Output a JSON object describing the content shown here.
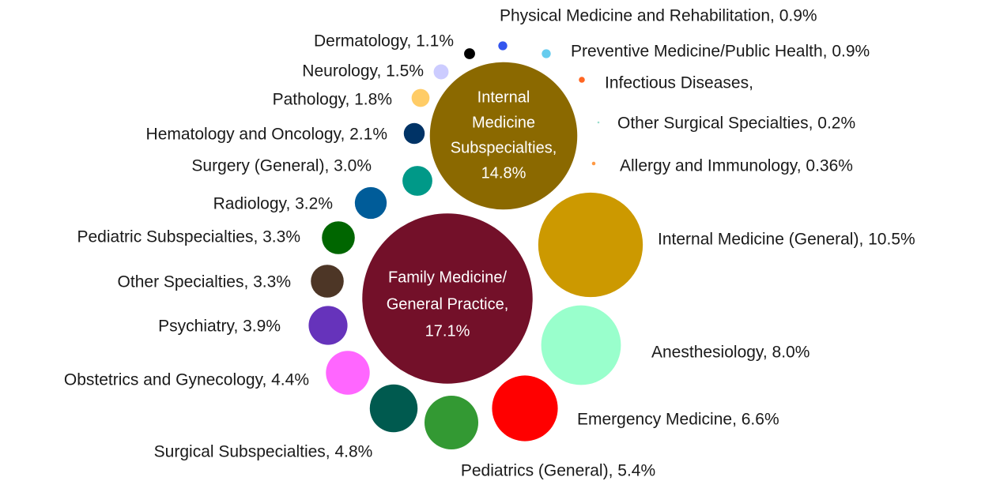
{
  "chart_data": {
    "type": "bubble",
    "labels": [
      [
        "Family Medicine/",
        "General Practice,",
        "17.1%"
      ],
      [
        "Internal",
        "Medicine",
        "Subspecialties,",
        "14.8%"
      ],
      [
        "Internal Medicine (General), 10.5%"
      ],
      [
        "Anesthesiology, 8.0%"
      ],
      [
        "Emergency Medicine, 6.6%"
      ],
      [
        "Pediatrics (General), 5.4%"
      ],
      [
        "Surgical Subspecialties, 4.8%"
      ],
      [
        "Obstetrics and Gynecology, 4.4%"
      ],
      [
        "Psychiatry, 3.9%"
      ],
      [
        "Other Specialties, 3.3%"
      ],
      [
        "Pediatric Subspecialties, 3.3%"
      ],
      [
        "Radiology, 3.2%"
      ],
      [
        "Surgery (General), 3.0%"
      ],
      [
        "Hematology and Oncology, 2.1%"
      ],
      [
        "Pathology, 1.8%"
      ],
      [
        "Neurology, 1.5%"
      ],
      [
        "Dermatology, 1.1%"
      ],
      [
        "Physical Medicine and Rehabilitation, 0.9%"
      ],
      [
        "Preventive Medicine/Public Health, 0.9%"
      ],
      [
        "Infectious Diseases,"
      ],
      [
        "Other Surgical Specialties, 0.2%"
      ],
      [
        "Allergy and Immunology, 0.36%"
      ]
    ],
    "values": [
      17.1,
      14.8,
      10.5,
      8.0,
      6.6,
      5.4,
      4.8,
      4.4,
      3.9,
      3.3,
      3.3,
      3.2,
      3.0,
      2.1,
      1.8,
      1.5,
      1.1,
      0.9,
      0.9,
      0.6,
      0.2,
      0.36
    ],
    "colors": [
      "#731029",
      "#8b6900",
      "#cc9900",
      "#99ffcc",
      "#ff0000",
      "#339933",
      "#005a4f",
      "#ff66ff",
      "#6633bb",
      "#4d3626",
      "#006600",
      "#005c99",
      "#009988",
      "#003366",
      "#ffcc66",
      "#ccccff",
      "#000000",
      "#3355ee",
      "#66ccee",
      "#ff6622",
      "#99ddcc",
      "#ff9944"
    ]
  }
}
